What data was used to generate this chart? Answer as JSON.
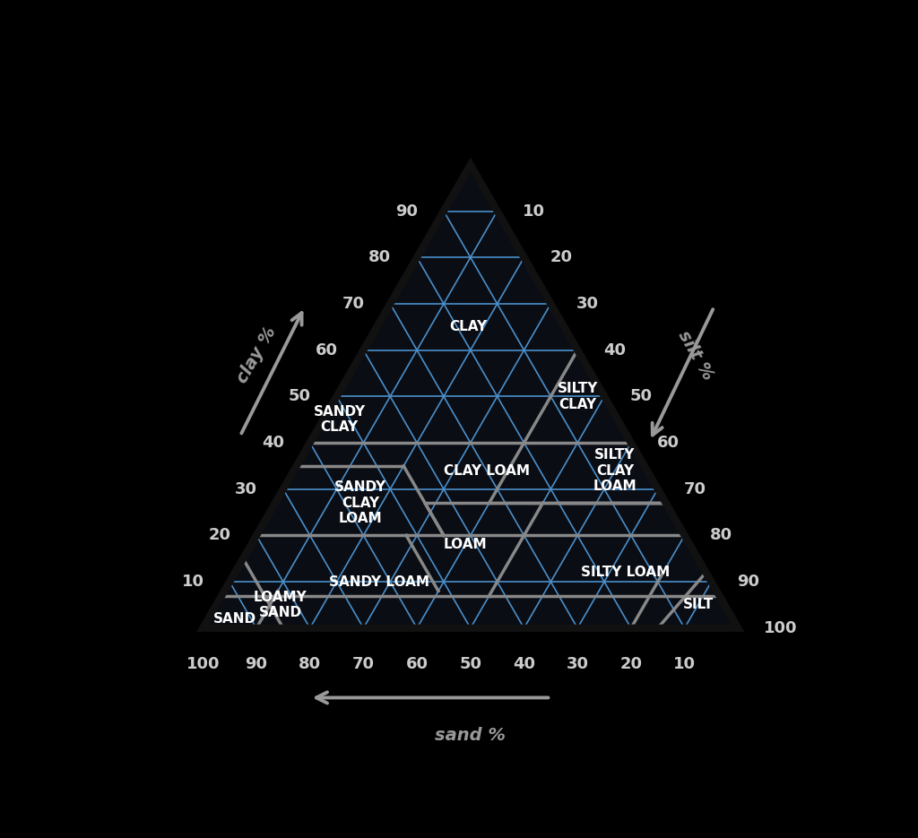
{
  "background_color": "#000000",
  "grid_blue_color": "#4a8fca",
  "grid_gray_color": "#888888",
  "tick_color": "#cccccc",
  "arrow_color": "#999999",
  "soil_label_color": "#ffffff",
  "outer_edge_color": "#1a1a1a",
  "fill_color": "#0d1117",
  "tick_fontsize": 13,
  "label_fontsize": 14,
  "soil_fontsize": 11,
  "blue_lw": 1.2,
  "gray_lw": 2.5,
  "outer_lw": 5,
  "soil_classes": [
    {
      "name": "CLAY",
      "clay": 65,
      "sand": 18,
      "silt": 17
    },
    {
      "name": "SILTY\nCLAY",
      "clay": 50,
      "sand": 5,
      "silt": 45
    },
    {
      "name": "SANDY\nCLAY",
      "clay": 45,
      "sand": 52,
      "silt": 3
    },
    {
      "name": "SILTY\nCLAY\nLOAM",
      "clay": 34,
      "sand": 6,
      "silt": 60
    },
    {
      "name": "CLAY LOAM",
      "clay": 34,
      "sand": 30,
      "silt": 36
    },
    {
      "name": "SANDY\nCLAY\nLOAM",
      "clay": 27,
      "sand": 57,
      "silt": 16
    },
    {
      "name": "LOAM",
      "clay": 18,
      "sand": 42,
      "silt": 40
    },
    {
      "name": "SILTY LOAM",
      "clay": 12,
      "sand": 15,
      "silt": 73
    },
    {
      "name": "SANDY LOAM",
      "clay": 10,
      "sand": 62,
      "silt": 28
    },
    {
      "name": "LOAMY\nSAND",
      "clay": 5,
      "sand": 83,
      "silt": 12
    },
    {
      "name": "SAND",
      "clay": 2,
      "sand": 93,
      "silt": 5
    },
    {
      "name": "SILT",
      "clay": 5,
      "sand": 5,
      "silt": 90
    }
  ]
}
